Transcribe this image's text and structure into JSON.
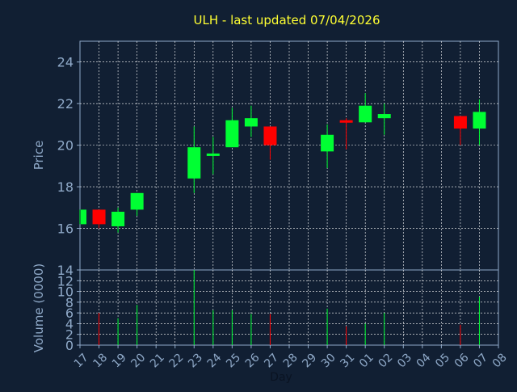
{
  "chart_data": {
    "type": "candlestick",
    "title": "ULH - last updated 07/04/2026",
    "xlabel": "Day",
    "ylabel_price": "Price",
    "ylabel_volume": "Volume (0000)",
    "x_tick_labels": [
      "17",
      "18",
      "19",
      "20",
      "21",
      "22",
      "23",
      "24",
      "25",
      "26",
      "27",
      "28",
      "29",
      "30",
      "31",
      "01",
      "02",
      "03",
      "04",
      "05",
      "06",
      "07",
      "08"
    ],
    "price_ylim": [
      14,
      25
    ],
    "price_ticks": [
      "14",
      "16",
      "18",
      "20",
      "22",
      "24"
    ],
    "volume_ylim": [
      0,
      14
    ],
    "volume_ticks": [
      "0",
      "2",
      "4",
      "6",
      "8",
      "10",
      "12"
    ],
    "grid": true,
    "colors": {
      "background": "#111f33",
      "axis": "#8fa9c8",
      "grid": "#ffffff",
      "title": "#ffff33",
      "label": "#8fa9c8",
      "up": "#00ff33",
      "down": "#ff0000"
    },
    "candles": [
      {
        "day": "17",
        "open": 16.2,
        "close": 16.9,
        "high": 16.9,
        "low": 16.2,
        "volume": 0
      },
      {
        "day": "18",
        "open": 16.9,
        "close": 16.2,
        "high": 16.9,
        "low": 16.0,
        "volume": 6
      },
      {
        "day": "19",
        "open": 16.1,
        "close": 16.8,
        "high": 17.0,
        "low": 15.8,
        "volume": 5
      },
      {
        "day": "20",
        "open": 16.9,
        "close": 17.7,
        "high": 17.7,
        "low": 16.6,
        "volume": 7.5
      },
      {
        "day": "23",
        "open": 18.4,
        "close": 19.9,
        "high": 20.9,
        "low": 17.7,
        "volume": 14
      },
      {
        "day": "24",
        "open": 19.5,
        "close": 19.6,
        "high": 20.4,
        "low": 18.6,
        "volume": 6.5
      },
      {
        "day": "25",
        "open": 19.9,
        "close": 21.2,
        "high": 21.8,
        "low": 19.9,
        "volume": 6.5
      },
      {
        "day": "26",
        "open": 20.9,
        "close": 21.3,
        "high": 21.9,
        "low": 20.4,
        "volume": 5.8
      },
      {
        "day": "27",
        "open": 20.9,
        "close": 20.0,
        "high": 20.9,
        "low": 19.3,
        "volume": 5.8
      },
      {
        "day": "30",
        "open": 19.7,
        "close": 20.5,
        "high": 21.0,
        "low": 18.9,
        "volume": 6.8
      },
      {
        "day": "31",
        "open": 21.2,
        "close": 21.1,
        "high": 21.3,
        "low": 19.8,
        "volume": 3.5
      },
      {
        "day": "01",
        "open": 21.1,
        "close": 21.9,
        "high": 22.5,
        "low": 21.1,
        "volume": 4
      },
      {
        "day": "02",
        "open": 21.3,
        "close": 21.5,
        "high": 22.0,
        "low": 20.5,
        "volume": 6
      },
      {
        "day": "06",
        "open": 21.4,
        "close": 20.8,
        "high": 21.4,
        "low": 20.0,
        "volume": 3.8
      },
      {
        "day": "07",
        "open": 20.8,
        "close": 21.6,
        "high": 22.2,
        "low": 20.0,
        "volume": 9
      }
    ]
  }
}
